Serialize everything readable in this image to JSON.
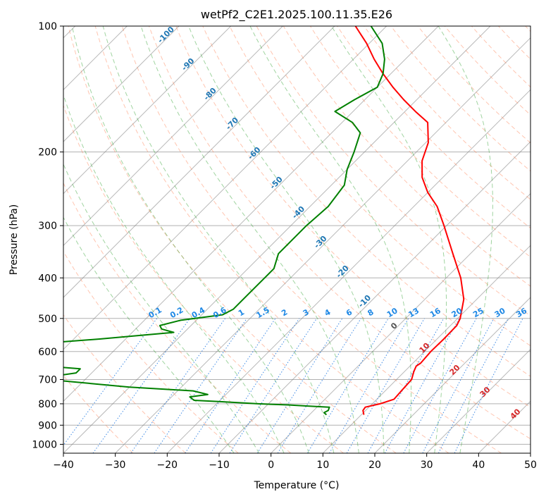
{
  "chart_data": {
    "type": "line",
    "title": "wetPf2_C2E1.2025.100.11.35.E26",
    "xlabel": "Temperature (°C)",
    "ylabel": "Pressure (hPa)",
    "xlim": [
      -40,
      50
    ],
    "ylim": [
      1050,
      100
    ],
    "y_scale": "log",
    "x_ticks": [
      -40,
      -30,
      -20,
      -10,
      0,
      10,
      20,
      30,
      40,
      50
    ],
    "y_ticks": [
      100,
      200,
      300,
      400,
      500,
      600,
      700,
      800,
      900,
      1000
    ],
    "grid": true,
    "skew_note": "Skew-T log-P diagram",
    "dry_adiabat_labels": [
      -100,
      -90,
      -80,
      -70,
      -60,
      -50,
      -40,
      -30,
      -20,
      -10
    ],
    "moist_adiabat_labels": [
      0,
      10,
      20,
      30,
      40
    ],
    "mixing_ratio_labels": [
      "0.1",
      "0.2",
      "0.4",
      "0.6",
      "1",
      "1.5",
      "2",
      "3",
      "4",
      "6",
      "8",
      "10",
      "13",
      "16",
      "20",
      "25",
      "30",
      "36"
    ],
    "colors": {
      "temperature": "#ff0000",
      "dewpoint": "#008000",
      "dry_adiabat": "#ff7f50",
      "moist_adiabat": "#2ca02c",
      "mixing_ratio": "#1f77e0",
      "isotherm": "#808080",
      "dry_adiabat_label": "#1f77b4",
      "moist_adiabat_label": "#d62728",
      "mixing_ratio_label": "#1e88e5"
    },
    "series": [
      {
        "key": "temperature",
        "points": [
          [
            850,
            10.5
          ],
          [
            830,
            9.5
          ],
          [
            815,
            9.3
          ],
          [
            800,
            11.5
          ],
          [
            780,
            13.3
          ],
          [
            740,
            13.1
          ],
          [
            700,
            12.9
          ],
          [
            670,
            11.8
          ],
          [
            650,
            11.2
          ],
          [
            640,
            11.5
          ],
          [
            600,
            11.2
          ],
          [
            560,
            11.3
          ],
          [
            520,
            11.2
          ],
          [
            500,
            10.5
          ],
          [
            450,
            7.5
          ],
          [
            400,
            2.8
          ],
          [
            350,
            -3.4
          ],
          [
            300,
            -10.5
          ],
          [
            270,
            -15.5
          ],
          [
            250,
            -20.0
          ],
          [
            230,
            -24.0
          ],
          [
            210,
            -27.2
          ],
          [
            190,
            -29.5
          ],
          [
            170,
            -33.5
          ],
          [
            160,
            -38.0
          ],
          [
            150,
            -42.5
          ],
          [
            140,
            -47.0
          ],
          [
            130,
            -51.5
          ],
          [
            120,
            -56.0
          ],
          [
            110,
            -60.5
          ],
          [
            100,
            -66.0
          ]
        ]
      },
      {
        "key": "dewpoint",
        "points": [
          [
            850,
            3.3
          ],
          [
            840,
            2.4
          ],
          [
            830,
            2.8
          ],
          [
            815,
            2.4
          ],
          [
            810,
            -2.0
          ],
          [
            805,
            -6.0
          ],
          [
            800,
            -12.0
          ],
          [
            790,
            -20.0
          ],
          [
            785,
            -25.0
          ],
          [
            770,
            -26.5
          ],
          [
            760,
            -23.5
          ],
          [
            745,
            -27.0
          ],
          [
            730,
            -40.0
          ],
          [
            700,
            -57.0
          ],
          [
            690,
            -57.5
          ],
          [
            675,
            -53.0
          ],
          [
            660,
            -53.0
          ],
          [
            650,
            -60.0
          ],
          [
            580,
            -70.0
          ],
          [
            560,
            -55.0
          ],
          [
            540,
            -42.0
          ],
          [
            530,
            -45.0
          ],
          [
            520,
            -46.0
          ],
          [
            505,
            -43.0
          ],
          [
            490,
            -36.0
          ],
          [
            475,
            -35.0
          ],
          [
            460,
            -35.0
          ],
          [
            440,
            -35.0
          ],
          [
            400,
            -35.0
          ],
          [
            380,
            -35.0
          ],
          [
            350,
            -37.0
          ],
          [
            300,
            -37.0
          ],
          [
            270,
            -36.5
          ],
          [
            240,
            -37.5
          ],
          [
            220,
            -40.0
          ],
          [
            200,
            -42.0
          ],
          [
            180,
            -44.5
          ],
          [
            170,
            -48.0
          ],
          [
            160,
            -53.5
          ],
          [
            150,
            -52.0
          ],
          [
            140,
            -50.0
          ],
          [
            130,
            -51.5
          ],
          [
            120,
            -54.0
          ],
          [
            110,
            -57.5
          ],
          [
            100,
            -63.0
          ]
        ]
      }
    ]
  }
}
